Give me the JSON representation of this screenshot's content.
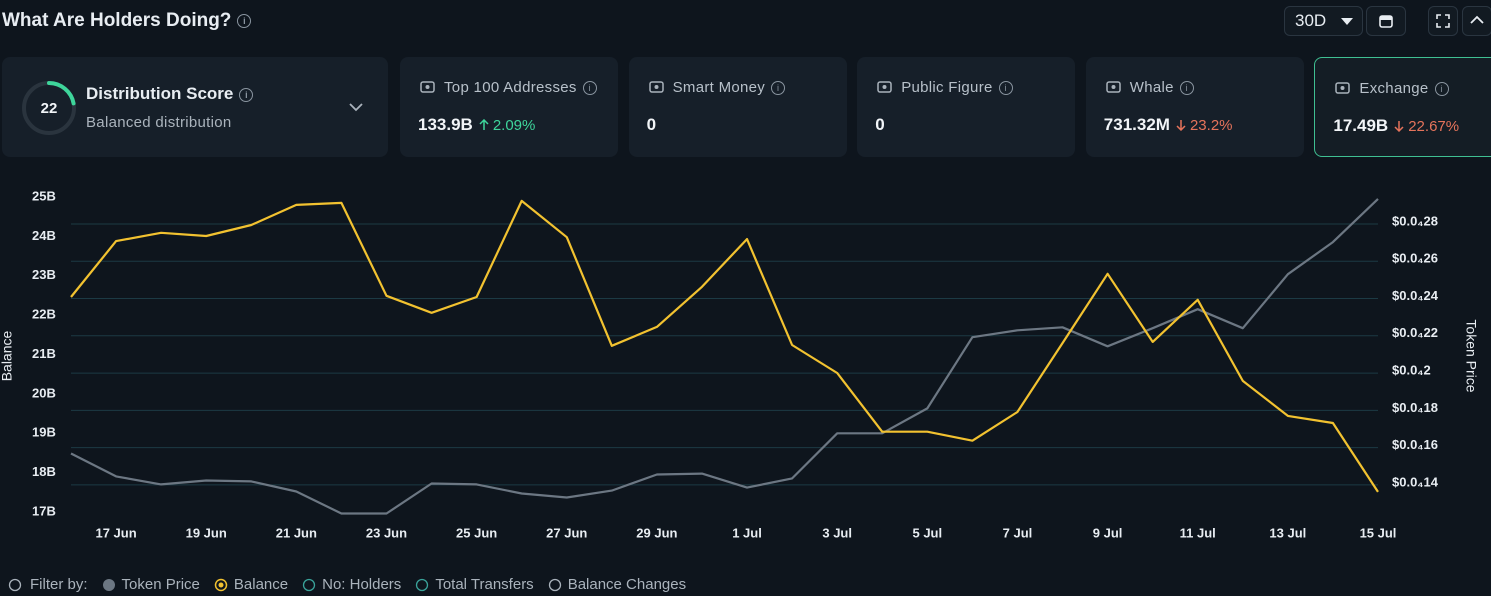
{
  "header": {
    "title": "What Are Holders Doing?",
    "period": "30D"
  },
  "score": {
    "value": 22,
    "label": "Distribution Score",
    "description": "Balanced distribution"
  },
  "cards": [
    {
      "label": "Top 100 Addresses",
      "value": "133.9B",
      "change": "2.09%",
      "direction": "up"
    },
    {
      "label": "Smart Money",
      "value": 0
    },
    {
      "label": "Public Figure",
      "value": 0
    },
    {
      "label": "Whale",
      "value": "731.32M",
      "change": "23.2%",
      "direction": "down"
    },
    {
      "label": "Exchange",
      "value": "17.49B",
      "change": "22.67%",
      "direction": "down",
      "selected": true
    }
  ],
  "chart_data": {
    "type": "line",
    "ylabel": "Balance",
    "y2label": "Token Price",
    "categories": [
      null,
      "17 Jun",
      null,
      "19 Jun",
      null,
      "21 Jun",
      null,
      "23 Jun",
      null,
      "25 Jun",
      null,
      "27 Jun",
      null,
      "29 Jun",
      null,
      "1 Jul",
      null,
      "3 Jul",
      null,
      "5 Jul",
      null,
      "7 Jul",
      null,
      "9 Jul",
      null,
      "11 Jul",
      null,
      "13 Jul",
      null,
      "15 Jul"
    ],
    "series": [
      {
        "name": "Token Price",
        "color": "#6c7783",
        "axis": "y2",
        "values": [
          1.558e-05,
          1.435e-05,
          1.392e-05,
          1.413e-05,
          1.408e-05,
          1.354e-05,
          1.236e-05,
          1.236e-05,
          1.397e-05,
          1.392e-05,
          1.343e-05,
          1.322e-05,
          1.359e-05,
          1.445e-05,
          1.45e-05,
          1.375e-05,
          1.424e-05,
          1.666e-05,
          1.666e-05,
          1.8e-05,
          2.182e-05,
          2.219e-05,
          2.235e-05,
          2.133e-05,
          2.23e-05,
          2.332e-05,
          2.23e-05,
          2.52e-05,
          2.692e-05,
          2.924e-05
        ]
      },
      {
        "name": "Balance",
        "color": "#f2c230",
        "values": [
          22460000000,
          23880000000,
          24090000000,
          24010000000,
          24290000000,
          24800000000,
          24850000000,
          22490000000,
          22060000000,
          22460000000,
          24900000000,
          23980000000,
          21220000000,
          21700000000,
          22720000000,
          23930000000,
          21240000000,
          20530000000,
          19040000000,
          19040000000,
          18810000000,
          19540000000,
          21290000000,
          23050000000,
          21320000000,
          22390000000,
          20330000000,
          19440000000,
          19260000000,
          17510000000
        ]
      }
    ],
    "ylim": [
      17000000000,
      25000000000
    ],
    "yticks": [
      {
        "value": 25000000000,
        "label": "25B"
      },
      {
        "value": 24000000000,
        "label": "24B"
      },
      {
        "value": 23000000000,
        "label": "23B"
      },
      {
        "value": 22000000000,
        "label": "22B"
      },
      {
        "value": 21000000000,
        "label": "21B"
      },
      {
        "value": 20000000000,
        "label": "20B"
      },
      {
        "value": 19000000000,
        "label": "19B"
      },
      {
        "value": 18000000000,
        "label": "18B"
      },
      {
        "value": 17000000000,
        "label": "17B"
      }
    ],
    "y2lim": [
      1.244e-05,
      2.934e-05
    ],
    "y2ticks": [
      {
        "value": 2.8e-05,
        "label": "$0.0₄28"
      },
      {
        "value": 2.6e-05,
        "label": "$0.0₄26"
      },
      {
        "value": 2.4e-05,
        "label": "$0.0₄24"
      },
      {
        "value": 2.2e-05,
        "label": "$0.0₄22"
      },
      {
        "value": 2e-05,
        "label": "$0.0₄2"
      },
      {
        "value": 1.8e-05,
        "label": "$0.0₄18"
      },
      {
        "value": 1.6e-05,
        "label": "$0.0₄16"
      },
      {
        "value": 1.4e-05,
        "label": "$0.0₄14"
      }
    ],
    "grid": true
  },
  "filter": {
    "label": "Filter by:",
    "options": [
      "No: Holders",
      "Total Transfers",
      "Balance Changes"
    ]
  }
}
